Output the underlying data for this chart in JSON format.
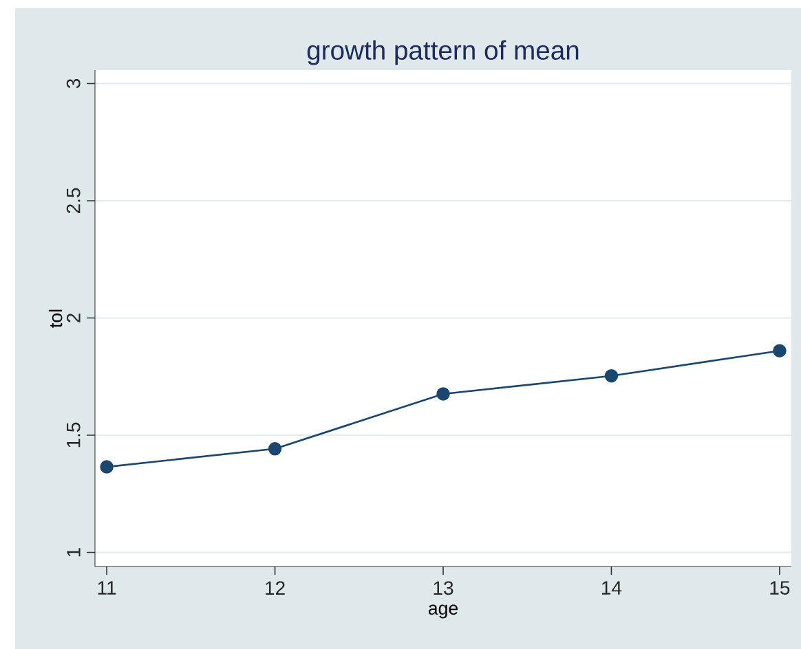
{
  "chart_data": {
    "type": "line",
    "title": "growth pattern of mean",
    "xlabel": "age",
    "ylabel": "tol",
    "x": [
      11,
      12,
      13,
      14,
      15
    ],
    "series": [
      {
        "color": "#1a476f",
        "values": [
          1.365,
          1.442,
          1.676,
          1.753,
          1.86
        ]
      }
    ],
    "xlim": [
      10.93,
      15.07
    ],
    "ylim": [
      0.94,
      3.057
    ],
    "xticks": [
      11,
      12,
      13,
      14,
      15
    ],
    "yticks": [
      1,
      1.5,
      2,
      2.5,
      3
    ],
    "grid": "y",
    "marker": "circle",
    "line_style": "solid"
  }
}
